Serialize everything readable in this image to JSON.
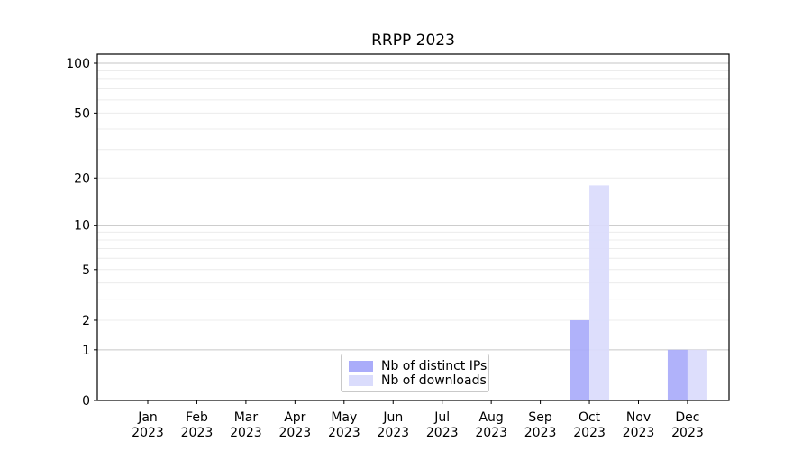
{
  "chart_data": {
    "type": "bar",
    "title": "RRPP 2023",
    "categories": [
      {
        "label": "Jan",
        "sublabel": "2023"
      },
      {
        "label": "Feb",
        "sublabel": "2023"
      },
      {
        "label": "Mar",
        "sublabel": "2023"
      },
      {
        "label": "Apr",
        "sublabel": "2023"
      },
      {
        "label": "May",
        "sublabel": "2023"
      },
      {
        "label": "Jun",
        "sublabel": "2023"
      },
      {
        "label": "Jul",
        "sublabel": "2023"
      },
      {
        "label": "Aug",
        "sublabel": "2023"
      },
      {
        "label": "Sep",
        "sublabel": "2023"
      },
      {
        "label": "Oct",
        "sublabel": "2023"
      },
      {
        "label": "Nov",
        "sublabel": "2023"
      },
      {
        "label": "Dec",
        "sublabel": "2023"
      }
    ],
    "series": [
      {
        "name": "Nb of distinct IPs",
        "color": "#aaacfa",
        "values": [
          0,
          0,
          0,
          0,
          0,
          0,
          0,
          0,
          0,
          2,
          0,
          1
        ]
      },
      {
        "name": "Nb of downloads",
        "color": "#dadcfc",
        "values": [
          0,
          0,
          0,
          0,
          0,
          0,
          0,
          0,
          0,
          18,
          0,
          1
        ]
      }
    ],
    "yaxis": {
      "scale": "log1p",
      "ticks": [
        0,
        1,
        2,
        5,
        10,
        20,
        50,
        100
      ],
      "range": [
        0,
        100
      ]
    },
    "grid": {
      "minor_color": "#ececec",
      "major_color": "#c6c6c6",
      "major_values": [
        1,
        10,
        100
      ],
      "minor_values": [
        2,
        3,
        4,
        5,
        6,
        7,
        8,
        9,
        20,
        30,
        40,
        50,
        60,
        70,
        80,
        90
      ]
    },
    "legend": {
      "position": "bottom-center"
    }
  }
}
